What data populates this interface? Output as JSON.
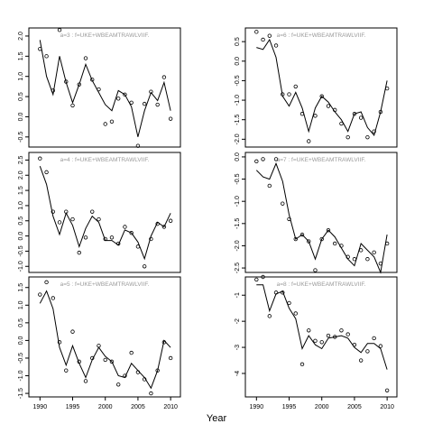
{
  "chart_data": {
    "type": "line",
    "xlabel": "Year",
    "panels": [
      {
        "label": "a=3  :  f=UKE+WBEAMTRAWLVIIF.",
        "xlim": [
          1988.3,
          2011.5
        ],
        "ylim": [
          -0.75,
          2.2
        ],
        "yticks": [
          -0.5,
          0.0,
          0.5,
          1.0,
          1.5,
          2.0
        ],
        "ytick_labels": [
          "-0.5",
          "0.0",
          "0.5",
          "1.0",
          "1.5",
          "2.0"
        ],
        "xticks": [],
        "xtick_labels": [],
        "points": [
          [
            1990,
            1.68
          ],
          [
            1991,
            1.5
          ],
          [
            1992,
            0.65
          ],
          [
            1993,
            2.15
          ],
          [
            1994,
            0.87
          ],
          [
            1995,
            0.28
          ],
          [
            1996,
            0.8
          ],
          [
            1997,
            1.45
          ],
          [
            1998,
            0.92
          ],
          [
            1999,
            0.68
          ],
          [
            2000,
            -0.18
          ],
          [
            2001,
            -0.12
          ],
          [
            2002,
            0.45
          ],
          [
            2003,
            0.55
          ],
          [
            2004,
            0.35
          ],
          [
            2005,
            -0.72
          ],
          [
            2006,
            0.32
          ],
          [
            2007,
            0.62
          ],
          [
            2008,
            0.3
          ],
          [
            2009,
            0.98
          ],
          [
            2010,
            -0.05
          ]
        ],
        "fit": [
          [
            1990,
            1.9
          ],
          [
            1991,
            1.0
          ],
          [
            1992,
            0.55
          ],
          [
            1993,
            1.5
          ],
          [
            1994,
            0.85
          ],
          [
            1995,
            0.35
          ],
          [
            1996,
            0.8
          ],
          [
            1997,
            1.3
          ],
          [
            1998,
            0.9
          ],
          [
            1999,
            0.6
          ],
          [
            2000,
            0.3
          ],
          [
            2001,
            0.15
          ],
          [
            2002,
            0.65
          ],
          [
            2003,
            0.55
          ],
          [
            2004,
            0.25
          ],
          [
            2005,
            -0.5
          ],
          [
            2006,
            0.15
          ],
          [
            2007,
            0.6
          ],
          [
            2008,
            0.4
          ],
          [
            2009,
            0.85
          ],
          [
            2010,
            0.15
          ]
        ]
      },
      {
        "label": "a=6  :  f=UKE+WBEAMTRAWLVIIF.",
        "xlim": [
          1988.3,
          2011.5
        ],
        "ylim": [
          -2.2,
          0.85
        ],
        "yticks": [
          -2.0,
          -1.5,
          -1.0,
          -0.5,
          0.0,
          0.5
        ],
        "ytick_labels": [
          "-2.0",
          "-1.5",
          "-1.0",
          "-0.5",
          "0.0",
          "0.5"
        ],
        "xticks": [],
        "xtick_labels": [],
        "points": [
          [
            1990,
            0.75
          ],
          [
            1991,
            0.55
          ],
          [
            1992,
            0.65
          ],
          [
            1993,
            0.4
          ],
          [
            1994,
            -0.85
          ],
          [
            1995,
            -0.85
          ],
          [
            1996,
            -0.65
          ],
          [
            1997,
            -1.35
          ],
          [
            1998,
            -2.05
          ],
          [
            1999,
            -1.4
          ],
          [
            2000,
            -0.9
          ],
          [
            2001,
            -1.15
          ],
          [
            2002,
            -1.25
          ],
          [
            2003,
            -1.6
          ],
          [
            2004,
            -1.95
          ],
          [
            2005,
            -1.35
          ],
          [
            2006,
            -1.45
          ],
          [
            2007,
            -1.95
          ],
          [
            2008,
            -1.8
          ],
          [
            2009,
            -1.3
          ],
          [
            2010,
            -0.7
          ]
        ],
        "fit": [
          [
            1990,
            0.35
          ],
          [
            1991,
            0.3
          ],
          [
            1992,
            0.55
          ],
          [
            1993,
            0.1
          ],
          [
            1994,
            -0.9
          ],
          [
            1995,
            -1.15
          ],
          [
            1996,
            -0.8
          ],
          [
            1997,
            -1.2
          ],
          [
            1998,
            -1.8
          ],
          [
            1999,
            -1.2
          ],
          [
            2000,
            -0.9
          ],
          [
            2001,
            -1.05
          ],
          [
            2002,
            -1.3
          ],
          [
            2003,
            -1.5
          ],
          [
            2004,
            -1.8
          ],
          [
            2005,
            -1.35
          ],
          [
            2006,
            -1.3
          ],
          [
            2007,
            -1.7
          ],
          [
            2008,
            -1.9
          ],
          [
            2009,
            -1.3
          ],
          [
            2010,
            -0.5
          ]
        ]
      },
      {
        "label": "a=4  :  f=UKE+WBEAMTRAWLVIIF.",
        "xlim": [
          1988.3,
          2011.5
        ],
        "ylim": [
          -1.2,
          2.75
        ],
        "yticks": [
          -1.0,
          -0.5,
          0.0,
          0.5,
          1.0,
          1.5,
          2.0,
          2.5
        ],
        "ytick_labels": [
          "-1.0",
          "-0.5",
          "0.0",
          "0.5",
          "1.0",
          "1.5",
          "2.0",
          "2.5"
        ],
        "xticks": [],
        "xtick_labels": [],
        "points": [
          [
            1990,
            2.55
          ],
          [
            1991,
            2.1
          ],
          [
            1992,
            0.8
          ],
          [
            1993,
            0.45
          ],
          [
            1994,
            0.8
          ],
          [
            1995,
            0.55
          ],
          [
            1996,
            -0.55
          ],
          [
            1997,
            -0.05
          ],
          [
            1998,
            0.8
          ],
          [
            1999,
            0.55
          ],
          [
            2000,
            -0.1
          ],
          [
            2001,
            -0.05
          ],
          [
            2002,
            -0.25
          ],
          [
            2003,
            0.3
          ],
          [
            2004,
            0.1
          ],
          [
            2005,
            -0.35
          ],
          [
            2006,
            -1.0
          ],
          [
            2007,
            -0.1
          ],
          [
            2008,
            0.4
          ],
          [
            2009,
            0.3
          ],
          [
            2010,
            0.5
          ]
        ],
        "fit": [
          [
            1990,
            2.3
          ],
          [
            1991,
            1.7
          ],
          [
            1992,
            0.65
          ],
          [
            1993,
            0.05
          ],
          [
            1994,
            0.75
          ],
          [
            1995,
            0.35
          ],
          [
            1996,
            -0.35
          ],
          [
            1997,
            0.25
          ],
          [
            1998,
            0.65
          ],
          [
            1999,
            0.45
          ],
          [
            2000,
            -0.15
          ],
          [
            2001,
            -0.15
          ],
          [
            2002,
            -0.3
          ],
          [
            2003,
            0.2
          ],
          [
            2004,
            0.1
          ],
          [
            2005,
            -0.2
          ],
          [
            2006,
            -0.75
          ],
          [
            2007,
            0.0
          ],
          [
            2008,
            0.45
          ],
          [
            2009,
            0.3
          ],
          [
            2010,
            0.75
          ]
        ]
      },
      {
        "label": "a=7  :  f=UKE+WBEAMTRAWLVIIF.",
        "xlim": [
          1988.3,
          2011.5
        ],
        "ylim": [
          -2.6,
          0.1
        ],
        "yticks": [
          -2.5,
          -2.0,
          -1.5,
          -1.0,
          -0.5,
          0.0
        ],
        "ytick_labels": [
          "-2.5",
          "-2.0",
          "-1.5",
          "-1.0",
          "-0.5",
          "0.0"
        ],
        "xticks": [],
        "xtick_labels": [],
        "points": [
          [
            1990,
            -0.1
          ],
          [
            1991,
            -0.05
          ],
          [
            1992,
            -0.65
          ],
          [
            1993,
            -0.05
          ],
          [
            1994,
            -1.05
          ],
          [
            1995,
            -1.4
          ],
          [
            1996,
            -1.85
          ],
          [
            1997,
            -1.75
          ],
          [
            1998,
            -1.9
          ],
          [
            1999,
            -2.55
          ],
          [
            2000,
            -1.85
          ],
          [
            2001,
            -1.65
          ],
          [
            2002,
            -1.95
          ],
          [
            2003,
            -2.0
          ],
          [
            2004,
            -2.25
          ],
          [
            2005,
            -2.3
          ],
          [
            2006,
            -2.1
          ],
          [
            2007,
            -2.3
          ],
          [
            2008,
            -2.15
          ],
          [
            2009,
            -2.4
          ],
          [
            2010,
            -1.95
          ]
        ],
        "fit": [
          [
            1990,
            -0.3
          ],
          [
            1991,
            -0.45
          ],
          [
            1992,
            -0.5
          ],
          [
            1993,
            -0.15
          ],
          [
            1994,
            -0.55
          ],
          [
            1995,
            -1.3
          ],
          [
            1996,
            -1.85
          ],
          [
            1997,
            -1.75
          ],
          [
            1998,
            -1.9
          ],
          [
            1999,
            -2.3
          ],
          [
            2000,
            -1.85
          ],
          [
            2001,
            -1.65
          ],
          [
            2002,
            -1.8
          ],
          [
            2003,
            -2.05
          ],
          [
            2004,
            -2.3
          ],
          [
            2005,
            -2.45
          ],
          [
            2006,
            -1.95
          ],
          [
            2007,
            -2.1
          ],
          [
            2008,
            -2.25
          ],
          [
            2009,
            -2.6
          ],
          [
            2010,
            -1.75
          ]
        ]
      },
      {
        "label": "a=5  :  f=UKE+WBEAMTRAWLVIIF.",
        "xlim": [
          1988.3,
          2011.5
        ],
        "ylim": [
          -1.6,
          1.8
        ],
        "yticks": [
          -1.5,
          -1.0,
          -0.5,
          0.0,
          0.5,
          1.0,
          1.5
        ],
        "ytick_labels": [
          "-1.5",
          "-1.0",
          "-0.5",
          "0.0",
          "0.5",
          "1.0",
          "1.5"
        ],
        "xticks": [
          1990,
          1995,
          2000,
          2005,
          2010
        ],
        "xtick_labels": [
          "1990",
          "1995",
          "2000",
          "2005",
          "2010"
        ],
        "points": [
          [
            1990,
            1.3
          ],
          [
            1991,
            1.65
          ],
          [
            1992,
            1.2
          ],
          [
            1993,
            -0.05
          ],
          [
            1994,
            -0.85
          ],
          [
            1995,
            0.25
          ],
          [
            1996,
            -0.6
          ],
          [
            1997,
            -1.15
          ],
          [
            1998,
            -0.5
          ],
          [
            1999,
            -0.15
          ],
          [
            2000,
            -0.55
          ],
          [
            2001,
            -0.6
          ],
          [
            2002,
            -1.25
          ],
          [
            2003,
            -1.0
          ],
          [
            2004,
            -0.35
          ],
          [
            2005,
            -0.9
          ],
          [
            2006,
            -1.1
          ],
          [
            2007,
            -1.5
          ],
          [
            2008,
            -0.85
          ],
          [
            2009,
            -0.05
          ],
          [
            2010,
            -0.5
          ]
        ],
        "fit": [
          [
            1990,
            1.05
          ],
          [
            1991,
            1.4
          ],
          [
            1992,
            0.9
          ],
          [
            1993,
            -0.2
          ],
          [
            1994,
            -0.7
          ],
          [
            1995,
            -0.15
          ],
          [
            1996,
            -0.65
          ],
          [
            1997,
            -1.05
          ],
          [
            1998,
            -0.55
          ],
          [
            1999,
            -0.2
          ],
          [
            2000,
            -0.45
          ],
          [
            2001,
            -0.6
          ],
          [
            2002,
            -1.0
          ],
          [
            2003,
            -1.05
          ],
          [
            2004,
            -0.65
          ],
          [
            2005,
            -0.85
          ],
          [
            2006,
            -1.05
          ],
          [
            2007,
            -1.35
          ],
          [
            2008,
            -0.85
          ],
          [
            2009,
            0.0
          ],
          [
            2010,
            -0.2
          ]
        ]
      },
      {
        "label": "a=8  :  f=UKE+WBEAMTRAWLVIIF.",
        "xlim": [
          1988.3,
          2011.5
        ],
        "ylim": [
          -4.9,
          -0.3
        ],
        "yticks": [
          -4,
          -3,
          -2,
          -1
        ],
        "ytick_labels": [
          "-4",
          "-3",
          "-2",
          "-1"
        ],
        "xticks": [
          1990,
          1995,
          2000,
          2005,
          2010
        ],
        "xtick_labels": [
          "1990",
          "1995",
          "2000",
          "2005",
          "2010"
        ],
        "points": [
          [
            1990,
            -0.4
          ],
          [
            1991,
            -0.3
          ],
          [
            1992,
            -1.8
          ],
          [
            1993,
            -0.9
          ],
          [
            1994,
            -0.9
          ],
          [
            1995,
            -1.3
          ],
          [
            1996,
            -1.7
          ],
          [
            1997,
            -3.65
          ],
          [
            1998,
            -2.35
          ],
          [
            1999,
            -2.75
          ],
          [
            2000,
            -2.8
          ],
          [
            2001,
            -2.55
          ],
          [
            2002,
            -2.6
          ],
          [
            2003,
            -2.35
          ],
          [
            2004,
            -2.5
          ],
          [
            2005,
            -2.9
          ],
          [
            2006,
            -3.5
          ],
          [
            2007,
            -3.15
          ],
          [
            2008,
            -2.65
          ],
          [
            2009,
            -2.95
          ],
          [
            2010,
            -4.65
          ]
        ],
        "fit": [
          [
            1990,
            -0.6
          ],
          [
            1991,
            -0.6
          ],
          [
            1992,
            -1.6
          ],
          [
            1993,
            -0.95
          ],
          [
            1994,
            -0.85
          ],
          [
            1995,
            -1.5
          ],
          [
            1996,
            -1.9
          ],
          [
            1997,
            -3.05
          ],
          [
            1998,
            -2.55
          ],
          [
            1999,
            -2.9
          ],
          [
            2000,
            -3.05
          ],
          [
            2001,
            -2.65
          ],
          [
            2002,
            -2.6
          ],
          [
            2003,
            -2.55
          ],
          [
            2004,
            -2.65
          ],
          [
            2005,
            -3.0
          ],
          [
            2006,
            -3.2
          ],
          [
            2007,
            -2.85
          ],
          [
            2008,
            -2.85
          ],
          [
            2009,
            -3.05
          ],
          [
            2010,
            -3.85
          ]
        ]
      }
    ]
  }
}
